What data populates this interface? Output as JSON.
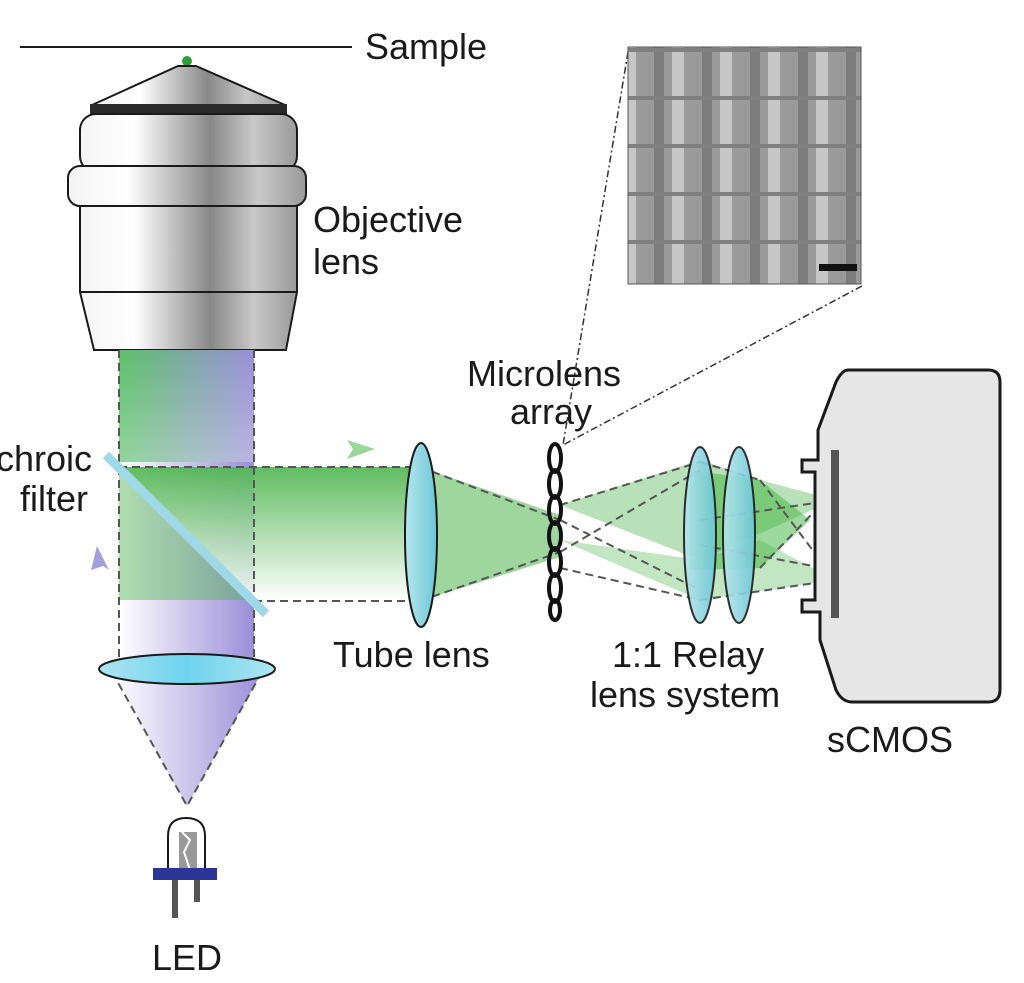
{
  "labels": {
    "sample": "Sample",
    "objective_line1": "Objective",
    "objective_line2": "lens",
    "microlens_line1": "Microlens",
    "microlens_line2": "array",
    "dichroic_line1": "chroic",
    "dichroic_line2": "filter",
    "tube_lens": "Tube lens",
    "relay_line1": "1:1 Relay",
    "relay_line2": "lens system",
    "camera": "sCMOS",
    "led": "LED"
  },
  "colors": {
    "emission_green": "#3fb83f",
    "excitation_purple": "#8a7fd0",
    "lens_cyan": "#8fd3de",
    "camera_body": "#e6e6e6",
    "outline": "#1a1a1a"
  }
}
